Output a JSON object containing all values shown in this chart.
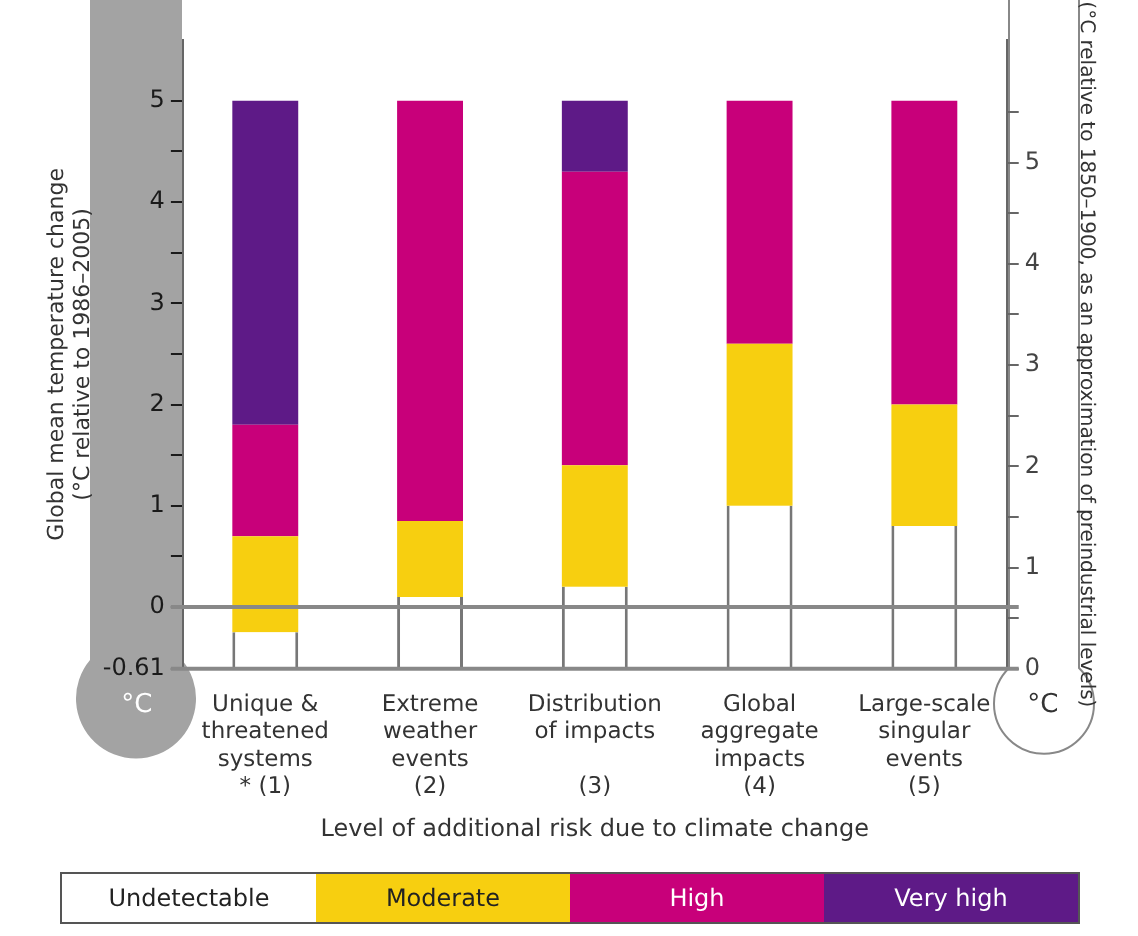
{
  "chart_data": {
    "type": "bar",
    "stacked": true,
    "xlabel": "Level of additional risk due to climate change",
    "ylabel": "Global mean temperature change\n(°C relative to 1986–2005)",
    "y2label": "(°C relative to 1850–1900, as an approximation of preindustrial levels)",
    "categories": [
      "Unique &\nthreatened\nsystems\n* (1)",
      "Extreme\nweather\nevents\n(2)",
      "Distribution\nof impacts\n\n(3)",
      "Global\naggregate\nimpacts\n(4)",
      "Large-scale\nsingular\nevents\n(5)"
    ],
    "series": [
      {
        "name": "Undetectable",
        "color": "#ffffff",
        "axis": "y2",
        "values": [
          0.36,
          0.71,
          0.81,
          1.61,
          1.41
        ]
      },
      {
        "name": "Moderate",
        "color": "#f7cf10",
        "axis": "y2",
        "values": [
          0.95,
          0.75,
          1.2,
          1.6,
          1.2
        ]
      },
      {
        "name": "High",
        "color": "#c8007a",
        "axis": "y2",
        "values": [
          1.1,
          4.15,
          2.9,
          2.4,
          3.0
        ]
      },
      {
        "name": "Very high",
        "color": "#5e1a87",
        "axis": "y2",
        "values": [
          3.2,
          0,
          0.7,
          0,
          0
        ]
      }
    ],
    "ylim": [
      -0.61,
      5.6
    ],
    "yticks": [
      {
        "value": -0.61,
        "label": "-0.61"
      },
      0,
      {
        "value": 0.5,
        "label": null
      },
      1,
      {
        "value": 1.5,
        "label": null
      },
      2,
      {
        "value": 2.5,
        "label": null
      },
      3,
      {
        "value": 3.5,
        "label": null
      },
      4,
      {
        "value": 4.5,
        "label": null
      },
      5
    ],
    "y2lim": [
      0,
      6.21
    ],
    "y2ticks": [
      0,
      {
        "value": 0.5,
        "label": null
      },
      1,
      {
        "value": 1.5,
        "label": null
      },
      2,
      {
        "value": 2.5,
        "label": null
      },
      3,
      {
        "value": 3.5,
        "label": null
      },
      4,
      {
        "value": 4.5,
        "label": null
      },
      5,
      {
        "value": 5.5,
        "label": null
      }
    ],
    "ref_lines": [
      {
        "axis": "y",
        "value": 0,
        "color": "#888888"
      }
    ],
    "annotations": [
      "°C",
      "°C"
    ],
    "legend": "bottom"
  }
}
